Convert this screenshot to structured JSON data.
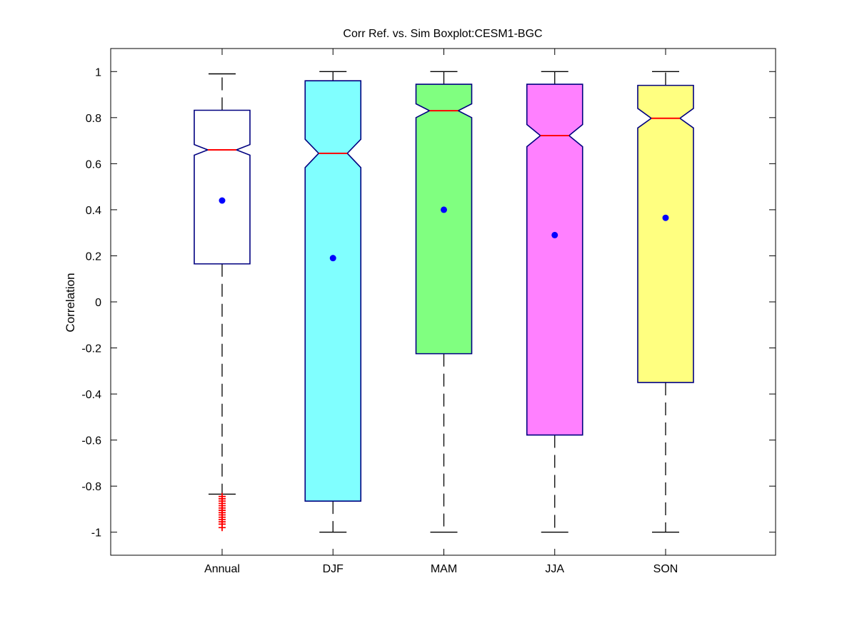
{
  "chart_data": {
    "type": "boxplot",
    "title": "Corr Ref. vs. Sim Boxplot:CESM1-BGC",
    "xlabel": "",
    "ylabel": "Correlation",
    "ylim": [
      -1.1,
      1.1
    ],
    "yticks": [
      "1",
      "0.8",
      "0.6",
      "0.4",
      "0.2",
      "0",
      "-0.2",
      "-0.4",
      "-0.6",
      "-0.8",
      "-1"
    ],
    "ytick_values": [
      1,
      0.8,
      0.6,
      0.4,
      0.2,
      0,
      -0.2,
      -0.4,
      -0.6,
      -0.8,
      -1
    ],
    "categories": [
      "Annual",
      "DJF",
      "MAM",
      "JJA",
      "SON"
    ],
    "grid": false,
    "notched": true,
    "boxes": [
      {
        "category": "Annual",
        "fill": "#ffffff",
        "whisker_low": -0.835,
        "q1": 0.165,
        "median": 0.66,
        "q3": 0.832,
        "whisker_high": 0.99,
        "notch_low": 0.637,
        "notch_high": 0.683,
        "mean": 0.44,
        "outliers": [
          -0.845,
          -0.855,
          -0.865,
          -0.875,
          -0.885,
          -0.895,
          -0.905,
          -0.915,
          -0.925,
          -0.935,
          -0.945,
          -0.955,
          -0.965,
          -0.98
        ]
      },
      {
        "category": "DJF",
        "fill": "#80ffff",
        "whisker_low": -1.0,
        "q1": -0.865,
        "median": 0.645,
        "q3": 0.96,
        "whisker_high": 1.0,
        "notch_low": 0.583,
        "notch_high": 0.706,
        "mean": 0.19,
        "outliers": []
      },
      {
        "category": "MAM",
        "fill": "#80ff80",
        "whisker_low": -1.0,
        "q1": -0.225,
        "median": 0.83,
        "q3": 0.945,
        "whisker_high": 1.0,
        "notch_low": 0.8,
        "notch_high": 0.86,
        "mean": 0.4,
        "outliers": []
      },
      {
        "category": "JJA",
        "fill": "#ff80ff",
        "whisker_low": -1.0,
        "q1": -0.578,
        "median": 0.722,
        "q3": 0.945,
        "whisker_high": 1.0,
        "notch_low": 0.674,
        "notch_high": 0.77,
        "mean": 0.29,
        "outliers": []
      },
      {
        "category": "SON",
        "fill": "#ffff80",
        "whisker_low": -1.0,
        "q1": -0.35,
        "median": 0.797,
        "q3": 0.94,
        "whisker_high": 1.0,
        "notch_low": 0.755,
        "notch_high": 0.84,
        "mean": 0.365,
        "outliers": []
      }
    ],
    "colors": {
      "box_edge": "#000080",
      "median": "#ff0000",
      "mean_marker": "#0000ff",
      "outlier": "#ff0000",
      "whisker": "#000000"
    }
  }
}
